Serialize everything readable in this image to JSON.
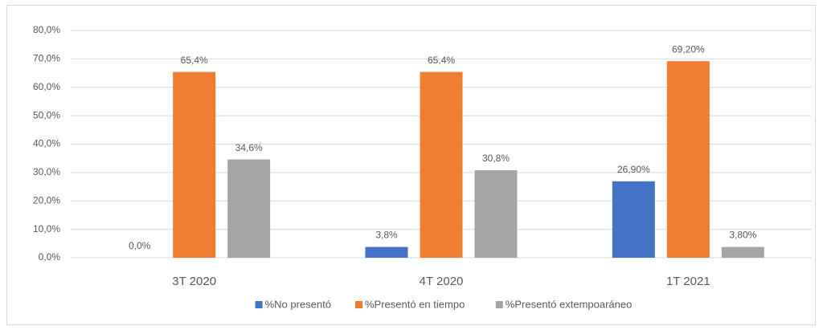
{
  "chart_data": {
    "type": "bar",
    "categories": [
      "3T 2020",
      "4T 2020",
      "1T 2021"
    ],
    "series": [
      {
        "name": "%No presentó",
        "color": "#4472c4",
        "values": [
          0,
          3.8,
          26.9
        ],
        "value_labels": [
          "0,0%",
          "3,8%",
          "26,90%"
        ]
      },
      {
        "name": "%Presentó en tiempo",
        "color": "#ed7d31",
        "values": [
          65.4,
          65.4,
          69.2
        ],
        "value_labels": [
          "65,4%",
          "65,4%",
          "69,20%"
        ]
      },
      {
        "name": "%Presentó extempoaráneo",
        "color": "#a5a5a5",
        "values": [
          34.6,
          30.8,
          3.8
        ],
        "value_labels": [
          "34,6%",
          "30,8%",
          "3,80%"
        ]
      }
    ],
    "ylim": [
      0,
      80
    ],
    "yticks": [
      {
        "value": 0,
        "label": "0,0%"
      },
      {
        "value": 10,
        "label": "10,0%"
      },
      {
        "value": 20,
        "label": "20,0%"
      },
      {
        "value": 30,
        "label": "30,0%"
      },
      {
        "value": 40,
        "label": "40,0%"
      },
      {
        "value": 50,
        "label": "50,0%"
      },
      {
        "value": 60,
        "label": "60,0%"
      },
      {
        "value": 70,
        "label": "70,0%"
      },
      {
        "value": 80,
        "label": "80,0%"
      }
    ],
    "grid": true,
    "legend": "bottom"
  }
}
